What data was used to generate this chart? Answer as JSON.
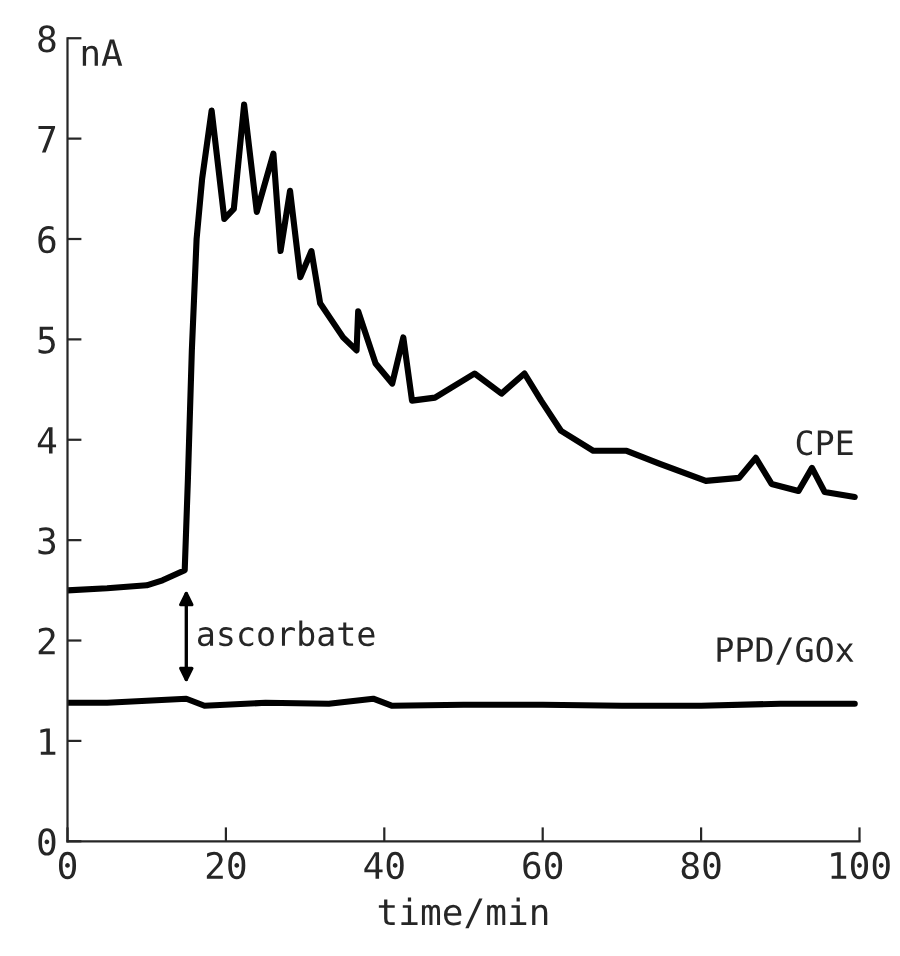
{
  "chart_data": {
    "type": "line",
    "xlabel": "time/min",
    "ylabel": "nA",
    "xlim": [
      0,
      100
    ],
    "ylim": [
      0,
      8
    ],
    "xticks": [
      0,
      20,
      40,
      60,
      80,
      100
    ],
    "yticks": [
      0,
      1,
      2,
      3,
      4,
      5,
      6,
      7,
      8
    ],
    "grid": false,
    "legend": false,
    "marker": "none",
    "line_style": "solid",
    "annotations": [
      "ascorbate"
    ],
    "series": [
      {
        "name": "CPE",
        "color": "#000000",
        "x": [
          0,
          5,
          10,
          12,
          14.8,
          15.2,
          15.7,
          16.3,
          17,
          18.2,
          19.8,
          21,
          22.3,
          23.9,
          26,
          26.9,
          28.1,
          29.4,
          30.8,
          31.9,
          34.8,
          36.5,
          36.7,
          38.9,
          41,
          42.4,
          43.5,
          46.4,
          51.4,
          54.8,
          57.7,
          59.8,
          62.3,
          66.4,
          70.6,
          74.8,
          80.6,
          84.8,
          86.9,
          88.9,
          92.3,
          94,
          95.6,
          99.4
        ],
        "values": [
          2.5,
          2.52,
          2.55,
          2.6,
          2.7,
          3.6,
          4.89,
          6.0,
          6.6,
          7.28,
          6.2,
          6.3,
          7.34,
          6.27,
          6.85,
          5.88,
          6.48,
          5.62,
          5.88,
          5.36,
          5.02,
          4.89,
          5.28,
          4.76,
          4.56,
          5.02,
          4.39,
          4.42,
          4.66,
          4.46,
          4.66,
          4.39,
          4.09,
          3.89,
          3.89,
          3.76,
          3.59,
          3.62,
          3.82,
          3.56,
          3.49,
          3.72,
          3.48,
          3.43
        ]
      },
      {
        "name": "PPD/GOx",
        "color": "#000000",
        "x": [
          0,
          5,
          10,
          15,
          17.3,
          25,
          33,
          38.6,
          41,
          50,
          60,
          70,
          80,
          90,
          99.4
        ],
        "values": [
          1.38,
          1.38,
          1.4,
          1.42,
          1.35,
          1.38,
          1.37,
          1.42,
          1.35,
          1.36,
          1.36,
          1.35,
          1.35,
          1.37,
          1.37
        ]
      }
    ]
  }
}
